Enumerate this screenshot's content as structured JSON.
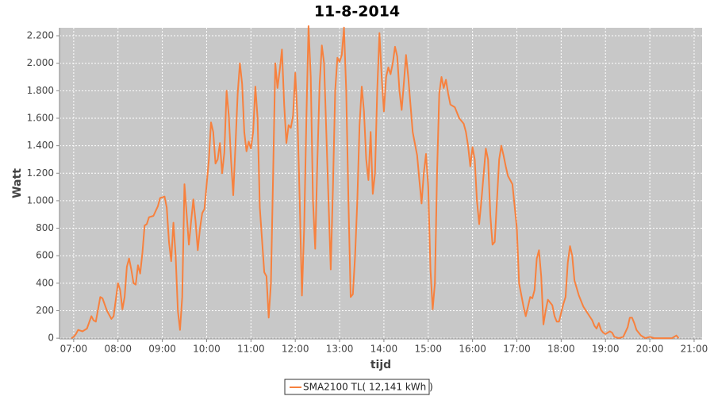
{
  "chart_data": {
    "type": "line",
    "title": "11-8-2014",
    "x_label": "tijd",
    "y_label": "Watt",
    "x": [
      6.95,
      7.0,
      7.05,
      7.1,
      7.2,
      7.3,
      7.4,
      7.45,
      7.5,
      7.6,
      7.65,
      7.75,
      7.85,
      7.9,
      8.0,
      8.05,
      8.1,
      8.15,
      8.2,
      8.25,
      8.3,
      8.35,
      8.4,
      8.45,
      8.5,
      8.55,
      8.6,
      8.65,
      8.7,
      8.8,
      8.9,
      8.95,
      9.05,
      9.1,
      9.15,
      9.2,
      9.25,
      9.3,
      9.35,
      9.4,
      9.45,
      9.5,
      9.55,
      9.6,
      9.65,
      9.7,
      9.75,
      9.8,
      9.85,
      9.9,
      9.95,
      10.05,
      10.1,
      10.15,
      10.2,
      10.25,
      10.3,
      10.35,
      10.4,
      10.45,
      10.5,
      10.55,
      10.6,
      10.65,
      10.7,
      10.75,
      10.8,
      10.85,
      10.9,
      10.95,
      11.0,
      11.05,
      11.1,
      11.15,
      11.2,
      11.3,
      11.35,
      11.4,
      11.45,
      11.5,
      11.55,
      11.6,
      11.65,
      11.7,
      11.75,
      11.8,
      11.85,
      11.9,
      11.95,
      12.0,
      12.05,
      12.1,
      12.15,
      12.2,
      12.25,
      12.3,
      12.35,
      12.4,
      12.45,
      12.5,
      12.55,
      12.6,
      12.65,
      12.7,
      12.8,
      12.85,
      12.9,
      12.95,
      13.0,
      13.05,
      13.1,
      13.15,
      13.2,
      13.25,
      13.3,
      13.35,
      13.4,
      13.45,
      13.5,
      13.55,
      13.6,
      13.65,
      13.7,
      13.75,
      13.8,
      13.85,
      13.9,
      13.95,
      14.0,
      14.05,
      14.1,
      14.15,
      14.2,
      14.25,
      14.3,
      14.35,
      14.4,
      14.45,
      14.5,
      14.55,
      14.6,
      14.65,
      14.75,
      14.8,
      14.85,
      14.9,
      14.95,
      15.0,
      15.05,
      15.1,
      15.15,
      15.2,
      15.25,
      15.3,
      15.35,
      15.4,
      15.45,
      15.5,
      15.6,
      15.7,
      15.8,
      15.85,
      15.9,
      15.95,
      16.0,
      16.05,
      16.1,
      16.15,
      16.2,
      16.3,
      16.35,
      16.4,
      16.45,
      16.5,
      16.55,
      16.6,
      16.65,
      16.7,
      16.75,
      16.8,
      16.85,
      16.9,
      17.0,
      17.05,
      17.15,
      17.2,
      17.3,
      17.35,
      17.4,
      17.45,
      17.5,
      17.55,
      17.6,
      17.65,
      17.7,
      17.8,
      17.85,
      17.9,
      17.95,
      18.05,
      18.1,
      18.15,
      18.2,
      18.25,
      18.3,
      18.4,
      18.5,
      18.6,
      18.7,
      18.75,
      18.8,
      18.85,
      18.9,
      18.95,
      19.0,
      19.1,
      19.15,
      19.2,
      19.3,
      19.4,
      19.5,
      19.55,
      19.6,
      19.65,
      19.7,
      19.8,
      19.9,
      20.0,
      20.1,
      20.5,
      20.6,
      20.65
    ],
    "series": [
      {
        "name": "SMA2100 TL( 12,141 kWh )",
        "color": "#f7813e",
        "values": [
          0,
          10,
          30,
          60,
          50,
          70,
          160,
          130,
          120,
          300,
          290,
          200,
          140,
          160,
          400,
          350,
          210,
          300,
          520,
          580,
          500,
          400,
          390,
          530,
          470,
          620,
          820,
          830,
          880,
          890,
          960,
          1020,
          1030,
          950,
          700,
          560,
          840,
          600,
          200,
          60,
          300,
          1120,
          900,
          680,
          850,
          1010,
          850,
          640,
          800,
          910,
          940,
          1300,
          1570,
          1500,
          1270,
          1300,
          1420,
          1200,
          1350,
          1800,
          1620,
          1300,
          1040,
          1400,
          1780,
          2000,
          1850,
          1500,
          1360,
          1430,
          1380,
          1500,
          1830,
          1600,
          950,
          480,
          450,
          150,
          400,
          1200,
          2000,
          1820,
          1950,
          2100,
          1700,
          1420,
          1550,
          1530,
          1620,
          1930,
          1600,
          1000,
          310,
          800,
          1600,
          2270,
          1900,
          1000,
          650,
          1300,
          1850,
          2130,
          2000,
          1500,
          500,
          1100,
          1800,
          2040,
          2010,
          2060,
          2260,
          1800,
          1000,
          300,
          320,
          600,
          1000,
          1550,
          1830,
          1650,
          1300,
          1150,
          1500,
          1050,
          1200,
          1800,
          2220,
          1900,
          1650,
          1900,
          1970,
          1920,
          2000,
          2120,
          2050,
          1800,
          1660,
          1850,
          2060,
          1900,
          1700,
          1500,
          1330,
          1150,
          980,
          1200,
          1340,
          1100,
          500,
          210,
          400,
          1200,
          1780,
          1900,
          1820,
          1880,
          1780,
          1700,
          1680,
          1600,
          1560,
          1500,
          1400,
          1250,
          1390,
          1300,
          1000,
          830,
          1000,
          1380,
          1300,
          900,
          680,
          700,
          1000,
          1300,
          1400,
          1330,
          1250,
          1180,
          1150,
          1120,
          800,
          400,
          230,
          160,
          300,
          290,
          350,
          580,
          640,
          450,
          100,
          200,
          280,
          240,
          160,
          120,
          120,
          250,
          300,
          550,
          670,
          600,
          420,
          310,
          230,
          180,
          130,
          90,
          70,
          110,
          60,
          40,
          30,
          50,
          40,
          10,
          0,
          10,
          80,
          150,
          150,
          110,
          60,
          20,
          0,
          10,
          0,
          0,
          20,
          0
        ]
      }
    ],
    "xlim": [
      6.68,
      21.18
    ],
    "xticks": [
      {
        "value": 7,
        "label": "07:00"
      },
      {
        "value": 8,
        "label": "08:00"
      },
      {
        "value": 9,
        "label": "09:00"
      },
      {
        "value": 10,
        "label": "10:00"
      },
      {
        "value": 11,
        "label": "11:00"
      },
      {
        "value": 12,
        "label": "12:00"
      },
      {
        "value": 13,
        "label": "13:00"
      },
      {
        "value": 14,
        "label": "14:00"
      },
      {
        "value": 15,
        "label": "15:00"
      },
      {
        "value": 16,
        "label": "16:00"
      },
      {
        "value": 17,
        "label": "17:00"
      },
      {
        "value": 18,
        "label": "18:00"
      },
      {
        "value": 19,
        "label": "19:00"
      },
      {
        "value": 20,
        "label": "20:00"
      },
      {
        "value": 21,
        "label": "21:00"
      }
    ],
    "ylim": [
      -5,
      2258
    ],
    "yticks": [
      0,
      200,
      400,
      600,
      800,
      {
        "value": 1000,
        "label": "1.000"
      },
      {
        "value": 1200,
        "label": "1.200"
      },
      {
        "value": 1400,
        "label": "1.400"
      },
      {
        "value": 1600,
        "label": "1.600"
      },
      {
        "value": 1800,
        "label": "1.800"
      },
      {
        "value": 2000,
        "label": "2.000"
      },
      {
        "value": 2200,
        "label": "2.200"
      }
    ],
    "grid": true,
    "legend": "bottom"
  }
}
